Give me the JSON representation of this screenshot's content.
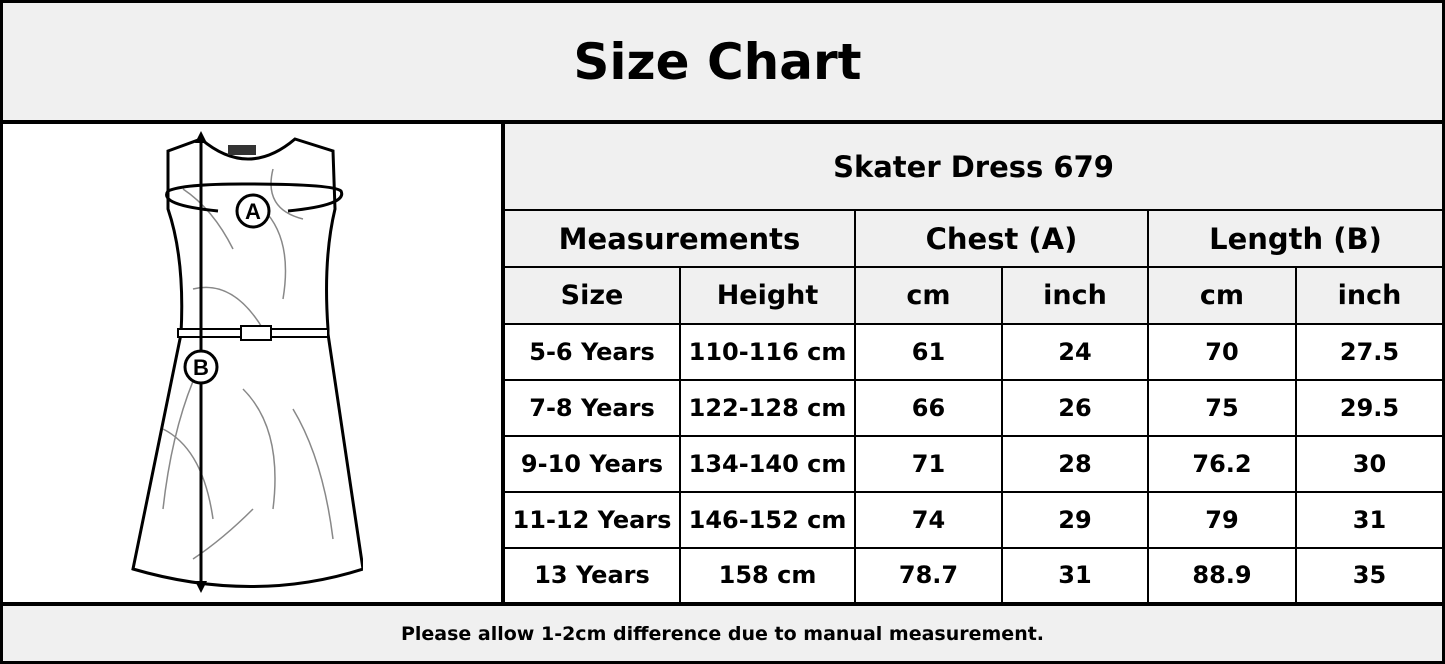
{
  "title": "Size Chart",
  "product": "Skater Dress 679",
  "diagram": {
    "chest_marker": "A",
    "length_marker": "B"
  },
  "table": {
    "group_headers": [
      "Measurements",
      "Chest (A)",
      "Length (B)"
    ],
    "sub_headers": [
      "Size",
      "Height",
      "cm",
      "inch",
      "cm",
      "inch"
    ],
    "rows": [
      [
        "5-6 Years",
        "110-116 cm",
        "61",
        "24",
        "70",
        "27.5"
      ],
      [
        "7-8 Years",
        "122-128 cm",
        "66",
        "26",
        "75",
        "29.5"
      ],
      [
        "9-10 Years",
        "134-140 cm",
        "71",
        "28",
        "76.2",
        "30"
      ],
      [
        "11-12 Years",
        "146-152 cm",
        "74",
        "29",
        "79",
        "31"
      ],
      [
        "13 Years",
        "158 cm",
        "78.7",
        "31",
        "88.9",
        "35"
      ]
    ]
  },
  "footer": "Please allow 1-2cm difference due to manual measurement."
}
